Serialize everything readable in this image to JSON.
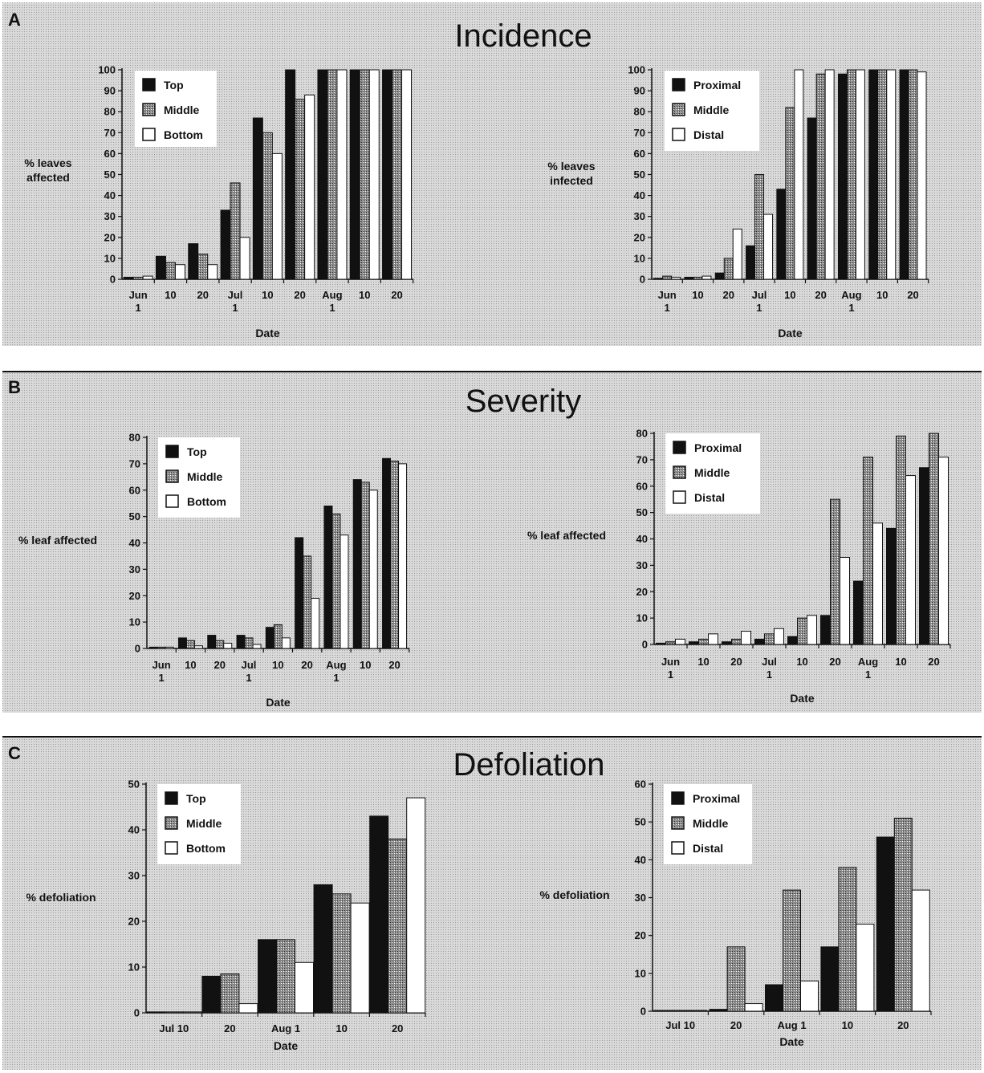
{
  "panels": [
    {
      "label": "A",
      "title": "Incidence"
    },
    {
      "label": "B",
      "title": "Severity"
    },
    {
      "label": "C",
      "title": "Defoliation"
    }
  ],
  "colors": {
    "background_screen": "#cfcfcf",
    "black_bar": "#111111",
    "middle_bar": "#8a8a8a",
    "white_bar": "#ffffff"
  },
  "chart_data": [
    {
      "panel": "A",
      "type": "bar",
      "ylabel": [
        "% leaves",
        "affected"
      ],
      "xlabel": "Date",
      "ylim": [
        0,
        100
      ],
      "yticks": [
        0,
        10,
        20,
        30,
        40,
        50,
        60,
        70,
        80,
        90,
        100
      ],
      "groups": 9,
      "xticks": [
        [
          "Jun",
          "1"
        ],
        [
          "10"
        ],
        [
          "20"
        ],
        [
          "Jul",
          "1"
        ],
        [
          "10"
        ],
        [
          "20"
        ],
        [
          "Aug",
          "1"
        ],
        [
          "10"
        ],
        [
          "20"
        ]
      ],
      "legend": [
        "Top",
        "Middle",
        "Bottom"
      ],
      "series": [
        {
          "name": "Top",
          "values": [
            1,
            11,
            17,
            33,
            77,
            100,
            100,
            100,
            100
          ]
        },
        {
          "name": "Middle",
          "values": [
            1,
            8,
            12,
            46,
            70,
            86,
            100,
            100,
            100
          ]
        },
        {
          "name": "Bottom",
          "values": [
            1.5,
            7,
            7,
            20,
            60,
            88,
            100,
            100,
            100
          ]
        }
      ]
    },
    {
      "panel": "A",
      "type": "bar",
      "ylabel": [
        "% leaves",
        "infected"
      ],
      "xlabel": "Date",
      "ylim": [
        0,
        100
      ],
      "yticks": [
        0,
        10,
        20,
        30,
        40,
        50,
        60,
        70,
        80,
        90,
        100
      ],
      "groups": 9,
      "xticks": [
        [
          "Jun",
          "1"
        ],
        [
          "10"
        ],
        [
          "20"
        ],
        [
          "Jul",
          "1"
        ],
        [
          "10"
        ],
        [
          "20"
        ],
        [
          "Aug",
          "1"
        ],
        [
          "10"
        ],
        [
          "20"
        ]
      ],
      "legend": [
        "Proximal",
        "Middle",
        "Distal"
      ],
      "series": [
        {
          "name": "Proximal",
          "values": [
            0.5,
            1,
            3,
            16,
            43,
            77,
            98,
            100,
            100
          ]
        },
        {
          "name": "Middle",
          "values": [
            1.5,
            1,
            10,
            50,
            82,
            98,
            100,
            100,
            100
          ]
        },
        {
          "name": "Distal",
          "values": [
            1,
            1.5,
            24,
            31,
            100,
            100,
            100,
            100,
            99
          ]
        }
      ]
    },
    {
      "panel": "B",
      "type": "bar",
      "ylabel": [
        "% leaf affected"
      ],
      "xlabel": "Date",
      "ylim": [
        0,
        80
      ],
      "yticks": [
        0,
        10,
        20,
        30,
        40,
        50,
        60,
        70,
        80
      ],
      "groups": 9,
      "xticks": [
        [
          "Jun",
          "1"
        ],
        [
          "10"
        ],
        [
          "20"
        ],
        [
          "Jul",
          "1"
        ],
        [
          "10"
        ],
        [
          "20"
        ],
        [
          "Aug",
          "1"
        ],
        [
          "10"
        ],
        [
          "20"
        ]
      ],
      "legend": [
        "Top",
        "Middle",
        "Bottom"
      ],
      "series": [
        {
          "name": "Top",
          "values": [
            0.5,
            4,
            5,
            5,
            8,
            42,
            54,
            64,
            72
          ]
        },
        {
          "name": "Middle",
          "values": [
            0.5,
            3,
            3,
            4,
            9,
            35,
            51,
            63,
            71
          ]
        },
        {
          "name": "Bottom",
          "values": [
            0.5,
            1,
            2,
            1.5,
            4,
            19,
            43,
            60,
            70
          ]
        }
      ]
    },
    {
      "panel": "B",
      "type": "bar",
      "ylabel": [
        "% leaf affected"
      ],
      "xlabel": "Date",
      "ylim": [
        0,
        80
      ],
      "yticks": [
        0,
        10,
        20,
        30,
        40,
        50,
        60,
        70,
        80
      ],
      "groups": 9,
      "xticks": [
        [
          "Jun",
          "1"
        ],
        [
          "10"
        ],
        [
          "20"
        ],
        [
          "Jul",
          "1"
        ],
        [
          "10"
        ],
        [
          "20"
        ],
        [
          "Aug",
          "1"
        ],
        [
          "10"
        ],
        [
          "20"
        ]
      ],
      "legend": [
        "Proximal",
        "Middle",
        "Distal"
      ],
      "series": [
        {
          "name": "Proximal",
          "values": [
            0.5,
            1,
            1,
            2,
            3,
            11,
            24,
            44,
            67
          ]
        },
        {
          "name": "Middle",
          "values": [
            1,
            2,
            2,
            4,
            10,
            55,
            71,
            79,
            80
          ]
        },
        {
          "name": "Distal",
          "values": [
            2,
            4,
            5,
            6,
            11,
            33,
            46,
            64,
            71
          ]
        }
      ]
    },
    {
      "panel": "C",
      "type": "bar",
      "ylabel": [
        "% defoliation"
      ],
      "xlabel": "Date",
      "ylim": [
        0,
        50
      ],
      "yticks": [
        0,
        10,
        20,
        30,
        40,
        50
      ],
      "groups": 5,
      "xticks": [
        [
          "Jul 10"
        ],
        [
          "20"
        ],
        [
          "Aug 1"
        ],
        [
          "10"
        ],
        [
          "20"
        ]
      ],
      "legend": [
        "Top",
        "Middle",
        "Bottom"
      ],
      "series": [
        {
          "name": "Top",
          "values": [
            0.2,
            8,
            16,
            28,
            43
          ]
        },
        {
          "name": "Middle",
          "values": [
            0.2,
            8.5,
            16,
            26,
            38
          ]
        },
        {
          "name": "Bottom",
          "values": [
            0.2,
            2,
            11,
            24,
            47
          ]
        }
      ]
    },
    {
      "panel": "C",
      "type": "bar",
      "ylabel": [
        "% defoliation"
      ],
      "xlabel": "Date",
      "ylim": [
        0,
        60
      ],
      "yticks": [
        0,
        10,
        20,
        30,
        40,
        50,
        60
      ],
      "groups": 5,
      "xticks": [
        [
          "Jul 10"
        ],
        [
          "20"
        ],
        [
          "Aug 1"
        ],
        [
          "10"
        ],
        [
          "20"
        ]
      ],
      "legend": [
        "Proximal",
        "Middle",
        "Distal"
      ],
      "series": [
        {
          "name": "Proximal",
          "values": [
            0.2,
            0.5,
            7,
            17,
            46
          ]
        },
        {
          "name": "Middle",
          "values": [
            0.2,
            17,
            32,
            38,
            51
          ]
        },
        {
          "name": "Distal",
          "values": [
            0.2,
            2,
            8,
            23,
            32
          ]
        }
      ]
    }
  ]
}
